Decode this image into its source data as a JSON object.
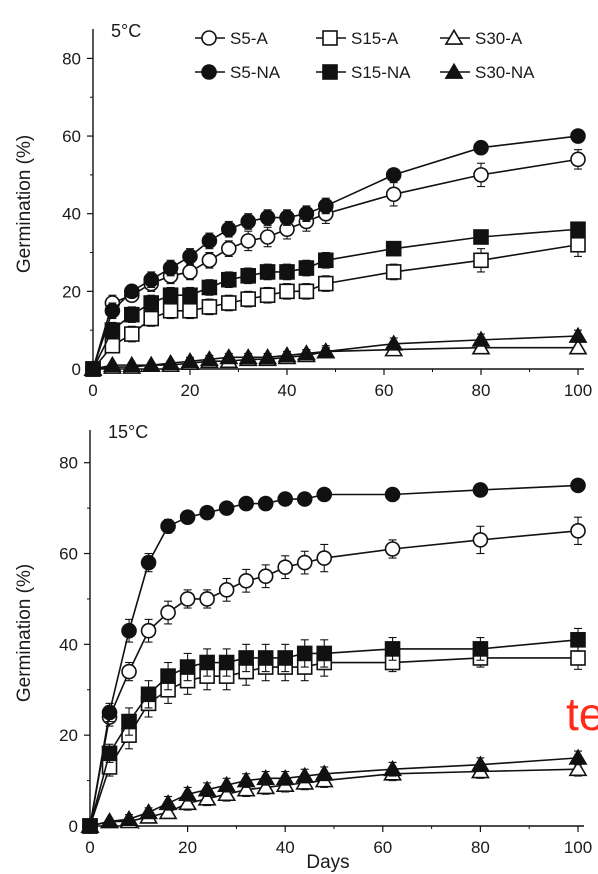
{
  "chart_data": [
    {
      "type": "line",
      "panel_label": "5°C",
      "title": "",
      "xlabel": "",
      "ylabel": "Germination (%)",
      "xlim": [
        0,
        100
      ],
      "ylim": [
        0,
        85
      ],
      "xticks": [
        0,
        20,
        40,
        60,
        80,
        100
      ],
      "yticks": [
        0,
        20,
        40,
        60,
        80
      ],
      "grid": false,
      "legend_position": "top-right",
      "series": [
        {
          "name": "S5-A",
          "marker": "circle",
          "filled": false,
          "x": [
            0,
            4,
            8,
            12,
            16,
            20,
            24,
            28,
            32,
            36,
            40,
            44,
            48,
            62,
            80,
            100
          ],
          "y": [
            0,
            17,
            19,
            22,
            24,
            25,
            28,
            31,
            33,
            34,
            36,
            38,
            40,
            45,
            50,
            54
          ],
          "err": [
            0,
            2,
            1.5,
            2,
            2,
            2,
            2,
            2,
            2.5,
            2.5,
            2.5,
            2.5,
            2.5,
            3,
            3,
            2.5
          ]
        },
        {
          "name": "S15-A",
          "marker": "square",
          "filled": false,
          "x": [
            0,
            4,
            8,
            12,
            16,
            20,
            24,
            28,
            32,
            36,
            40,
            44,
            48,
            62,
            80,
            100
          ],
          "y": [
            0,
            6,
            9,
            13,
            15,
            15,
            16,
            17,
            18,
            19,
            20,
            20,
            22,
            25,
            28,
            32
          ],
          "err": [
            0,
            1.5,
            2,
            2,
            2,
            2,
            2,
            2,
            2,
            2,
            2,
            2,
            2,
            2,
            3,
            3
          ]
        },
        {
          "name": "S30-A",
          "marker": "triangle",
          "filled": false,
          "x": [
            0,
            4,
            8,
            12,
            16,
            20,
            24,
            28,
            32,
            36,
            40,
            44,
            48,
            62,
            80,
            100
          ],
          "y": [
            0,
            0.5,
            0.5,
            1,
            1,
            1.5,
            2,
            2,
            2.5,
            2.5,
            3,
            3.5,
            4.5,
            5,
            5.5,
            5.5
          ],
          "err": [
            0,
            0.5,
            0.5,
            0.5,
            0.5,
            1,
            1,
            1,
            1,
            1,
            1,
            1.5,
            1.5,
            1.5,
            1.5,
            1.5
          ]
        },
        {
          "name": "S5-NA",
          "marker": "circle",
          "filled": true,
          "x": [
            0,
            4,
            8,
            12,
            16,
            20,
            24,
            28,
            32,
            36,
            40,
            44,
            48,
            62,
            80,
            100
          ],
          "y": [
            0,
            15,
            20,
            23,
            26,
            29,
            33,
            36,
            38,
            39,
            39,
            40,
            42,
            50,
            57,
            60
          ],
          "err": [
            0,
            2,
            1.5,
            2,
            2,
            2,
            2,
            2,
            2,
            2,
            2,
            2,
            2,
            1.5,
            1.5,
            1
          ]
        },
        {
          "name": "S15-NA",
          "marker": "square",
          "filled": true,
          "x": [
            0,
            4,
            8,
            12,
            16,
            20,
            24,
            28,
            32,
            36,
            40,
            44,
            48,
            62,
            80,
            100
          ],
          "y": [
            0,
            10,
            14,
            17,
            19,
            19,
            21,
            23,
            24,
            25,
            25,
            26,
            28,
            31,
            34,
            36
          ],
          "err": [
            0,
            2,
            2,
            2,
            2,
            2,
            2,
            2,
            2,
            2,
            2,
            2,
            2,
            1.5,
            1.5,
            1.5
          ]
        },
        {
          "name": "S30-NA",
          "marker": "triangle",
          "filled": true,
          "x": [
            0,
            4,
            8,
            12,
            16,
            20,
            24,
            28,
            32,
            36,
            40,
            44,
            48,
            62,
            80,
            100
          ],
          "y": [
            0,
            1,
            1,
            1,
            1.5,
            2,
            2.5,
            3,
            3,
            3,
            3.5,
            4,
            4.5,
            6.5,
            7.5,
            8.5
          ],
          "err": [
            0,
            0.5,
            0.5,
            0.5,
            0.5,
            1,
            1,
            1,
            1,
            1,
            1,
            1,
            1,
            1.5,
            1.5,
            1.5
          ]
        }
      ]
    },
    {
      "type": "line",
      "panel_label": "15°C",
      "title": "",
      "xlabel": "Days",
      "ylabel": "Germination (%)",
      "xlim": [
        0,
        100
      ],
      "ylim": [
        0,
        85
      ],
      "xticks": [
        0,
        20,
        40,
        60,
        80,
        100
      ],
      "yticks": [
        0,
        20,
        40,
        60,
        80
      ],
      "grid": false,
      "series": [
        {
          "name": "S5-A",
          "marker": "circle",
          "filled": false,
          "x": [
            0,
            4,
            8,
            12,
            16,
            20,
            24,
            28,
            32,
            36,
            40,
            44,
            48,
            62,
            80,
            100
          ],
          "y": [
            0,
            24,
            34,
            43,
            47,
            50,
            50,
            52,
            54,
            55,
            57,
            58,
            59,
            61,
            63,
            65
          ],
          "err": [
            0,
            2,
            2,
            2.5,
            2.5,
            2,
            2,
            2.5,
            2.5,
            2.5,
            2.5,
            2.5,
            3,
            2,
            3,
            3
          ]
        },
        {
          "name": "S15-A",
          "marker": "square",
          "filled": false,
          "x": [
            0,
            4,
            8,
            12,
            16,
            20,
            24,
            28,
            32,
            36,
            40,
            44,
            48,
            62,
            80,
            100
          ],
          "y": [
            0,
            13,
            20,
            27,
            30,
            32,
            33,
            33,
            34,
            35,
            35,
            35,
            36,
            36,
            37,
            37
          ],
          "err": [
            0,
            2,
            3,
            3,
            3,
            3,
            3,
            3,
            3,
            3,
            3,
            3,
            3,
            2,
            2,
            2.5
          ]
        },
        {
          "name": "S30-A",
          "marker": "triangle",
          "filled": false,
          "x": [
            0,
            4,
            8,
            12,
            16,
            20,
            24,
            28,
            32,
            36,
            40,
            44,
            48,
            62,
            80,
            100
          ],
          "y": [
            0,
            1,
            1,
            2,
            3,
            5,
            6,
            7,
            8,
            8.5,
            9,
            9.5,
            10,
            11.5,
            12,
            12.5
          ],
          "err": [
            0,
            0.5,
            0.5,
            1,
            1,
            1.5,
            1.5,
            1.5,
            1.5,
            1.5,
            1.5,
            1.5,
            1.5,
            1.5,
            1.5,
            1.5
          ]
        },
        {
          "name": "S5-NA",
          "marker": "circle",
          "filled": true,
          "x": [
            0,
            4,
            8,
            12,
            16,
            20,
            24,
            28,
            32,
            36,
            40,
            44,
            48,
            62,
            80,
            100
          ],
          "y": [
            0,
            25,
            43,
            58,
            66,
            68,
            69,
            70,
            71,
            71,
            72,
            72,
            73,
            73,
            74,
            75
          ],
          "err": [
            0,
            2,
            2.5,
            2,
            1.5,
            1,
            1,
            1,
            1,
            1,
            1,
            1,
            1,
            1,
            1,
            1
          ]
        },
        {
          "name": "S15-NA",
          "marker": "square",
          "filled": true,
          "x": [
            0,
            4,
            8,
            12,
            16,
            20,
            24,
            28,
            32,
            36,
            40,
            44,
            48,
            62,
            80,
            100
          ],
          "y": [
            0,
            16,
            23,
            29,
            33,
            35,
            36,
            36,
            37,
            37,
            37,
            38,
            38,
            39,
            39,
            41
          ],
          "err": [
            0,
            2,
            3,
            3,
            3,
            3,
            3,
            3,
            3,
            3,
            3,
            3,
            3,
            2.5,
            2.5,
            2.5
          ]
        },
        {
          "name": "S30-NA",
          "marker": "triangle",
          "filled": true,
          "x": [
            0,
            4,
            8,
            12,
            16,
            20,
            24,
            28,
            32,
            36,
            40,
            44,
            48,
            62,
            80,
            100
          ],
          "y": [
            0,
            1,
            1.5,
            3,
            5,
            7,
            8,
            9,
            10,
            10.5,
            10.5,
            11,
            11.5,
            12.5,
            13.5,
            15
          ],
          "err": [
            0,
            0.5,
            1,
            1,
            1.5,
            1.5,
            1.5,
            1.5,
            1.5,
            1.5,
            1.5,
            1.5,
            1.5,
            1.5,
            1.5,
            1.5
          ]
        }
      ]
    }
  ],
  "overlay": {
    "text": "te",
    "color": "#ff2a1a"
  }
}
